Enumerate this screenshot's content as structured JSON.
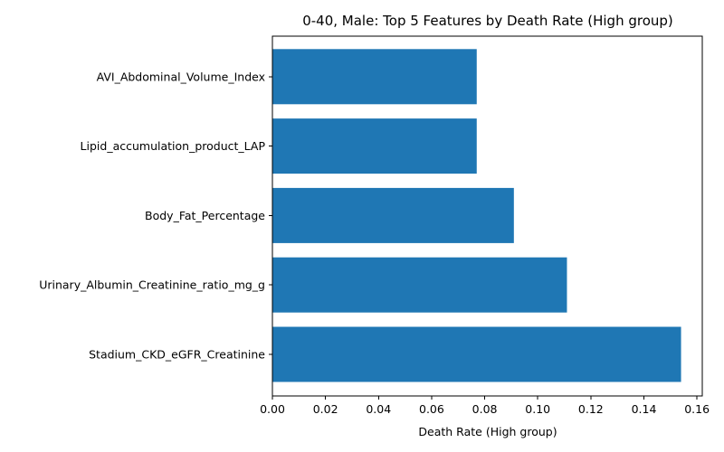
{
  "chart_data": {
    "type": "bar",
    "orientation": "horizontal",
    "title": "0-40, Male: Top 5 Features by Death Rate (High group)",
    "xlabel": "Death Rate (High group)",
    "ylabel": "",
    "categories": [
      "Stadium_CKD_eGFR_Creatinine",
      "Urinary_Albumin_Creatinine_ratio_mg_g",
      "Body_Fat_Percentage",
      "Lipid_accumulation_product_LAP",
      "AVI_Abdominal_Volume_Index"
    ],
    "values": [
      0.154,
      0.111,
      0.091,
      0.077,
      0.077
    ],
    "xlim": [
      0.0,
      0.162
    ],
    "xticks": [
      0.0,
      0.02,
      0.04,
      0.06,
      0.08,
      0.1,
      0.12,
      0.14,
      0.16
    ],
    "xtick_labels": [
      "0.00",
      "0.02",
      "0.04",
      "0.06",
      "0.08",
      "0.10",
      "0.12",
      "0.14",
      "0.16"
    ],
    "bar_color": "#1f77b4",
    "grid": false,
    "legend": "none"
  }
}
